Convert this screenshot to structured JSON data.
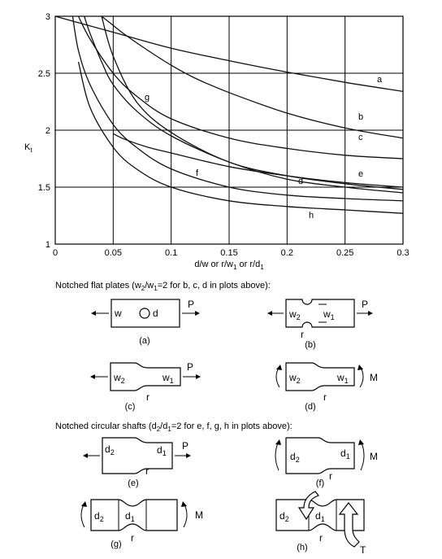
{
  "chart_data": {
    "type": "line",
    "ylabel": "K",
    "ylabel_sub": "t",
    "xlabel_parts": [
      "d/w  or  r/w",
      "1",
      "  or  r/d",
      "1"
    ],
    "xlim": [
      0,
      0.3
    ],
    "ylim": [
      1,
      3
    ],
    "x_ticks": [
      0,
      0.05,
      0.1,
      0.15,
      0.2,
      0.25,
      0.3
    ],
    "x_tick_labels": [
      "0",
      "0.05",
      "0.1",
      "0.15",
      "0.2",
      "0.25",
      "0.3"
    ],
    "y_ticks": [
      1,
      1.5,
      2,
      2.5,
      3
    ],
    "y_tick_labels": [
      "1",
      "1.5",
      "2",
      "2.5",
      "3"
    ],
    "grid": true,
    "series": [
      {
        "name": "a",
        "x": [
          0.0,
          0.05,
          0.1,
          0.15,
          0.2,
          0.25,
          0.3
        ],
        "y": [
          3.0,
          2.86,
          2.72,
          2.61,
          2.51,
          2.42,
          2.34
        ]
      },
      {
        "name": "b",
        "x": [
          0.04,
          0.05,
          0.06,
          0.08,
          0.1,
          0.12,
          0.15,
          0.2,
          0.25,
          0.3
        ],
        "y": [
          3.0,
          2.92,
          2.84,
          2.7,
          2.57,
          2.46,
          2.33,
          2.15,
          2.02,
          1.93
        ]
      },
      {
        "name": "c",
        "x": [
          0.02,
          0.03,
          0.05,
          0.07,
          0.1,
          0.15,
          0.2,
          0.25,
          0.3
        ],
        "y": [
          3.0,
          2.8,
          2.5,
          2.3,
          2.1,
          1.93,
          1.84,
          1.78,
          1.75
        ]
      },
      {
        "name": "d",
        "x": [
          0.025,
          0.03,
          0.04,
          0.05,
          0.07,
          0.1,
          0.15,
          0.2,
          0.25,
          0.3
        ],
        "y": [
          3.0,
          2.85,
          2.6,
          2.4,
          2.17,
          1.95,
          1.72,
          1.57,
          1.5,
          1.45
        ]
      },
      {
        "name": "e",
        "x": [
          0.05,
          0.06,
          0.08,
          0.1,
          0.15,
          0.2,
          0.25,
          0.3
        ],
        "y": [
          1.97,
          1.92,
          1.85,
          1.8,
          1.68,
          1.6,
          1.54,
          1.5
        ]
      },
      {
        "name": "f",
        "x": [
          0.015,
          0.02,
          0.03,
          0.05,
          0.07,
          0.1,
          0.15,
          0.2,
          0.25,
          0.3
        ],
        "y": [
          3.0,
          2.7,
          2.4,
          2.05,
          1.85,
          1.66,
          1.5,
          1.43,
          1.4,
          1.38
        ]
      },
      {
        "name": "g",
        "x": [
          0.04,
          0.05,
          0.07,
          0.1,
          0.15,
          0.2,
          0.25,
          0.3
        ],
        "y": [
          3.0,
          2.65,
          2.25,
          1.98,
          1.72,
          1.6,
          1.53,
          1.48
        ]
      },
      {
        "name": "h",
        "x": [
          0.02,
          0.03,
          0.05,
          0.07,
          0.1,
          0.15,
          0.2,
          0.25,
          0.3
        ],
        "y": [
          2.6,
          2.2,
          1.85,
          1.66,
          1.5,
          1.38,
          1.33,
          1.3,
          1.27
        ]
      }
    ]
  },
  "plates": {
    "heading_parts": [
      "Notched flat plates (w",
      "2",
      "/w",
      "1",
      "=2 for b, c, d in plots above):"
    ],
    "a": {
      "caption": "(a)",
      "w": "w",
      "d": "d",
      "load": "P"
    },
    "b": {
      "caption": "(b)",
      "w2": "w",
      "w2_sub": "2",
      "w1": "w",
      "w1_sub": "1",
      "r": "r",
      "load": "P"
    },
    "c": {
      "caption": "(c)",
      "w2": "w",
      "w2_sub": "2",
      "w1": "w",
      "w1_sub": "1",
      "r": "r",
      "load": "P"
    },
    "d": {
      "caption": "(d)",
      "w2": "w",
      "w2_sub": "2",
      "w1": "w",
      "w1_sub": "1",
      "r": "r",
      "load": "M"
    }
  },
  "shafts": {
    "heading_parts": [
      "Notched circular shafts (d",
      "2",
      "/d",
      "1",
      "=2 for e, f, g, h in plots above):"
    ],
    "e": {
      "caption": "(e)",
      "d2": "d",
      "d2_sub": "2",
      "d1": "d",
      "d1_sub": "1",
      "r": "r",
      "load": "P"
    },
    "f": {
      "caption": "(f)",
      "d2": "d",
      "d2_sub": "2",
      "d1": "d",
      "d1_sub": "1",
      "r": "r",
      "load": "M"
    },
    "g": {
      "caption": "(g)",
      "d2": "d",
      "d2_sub": "2",
      "d1": "d",
      "d1_sub": "1",
      "r": "r",
      "load": "M"
    },
    "h": {
      "caption": "(h)",
      "d2": "d",
      "d2_sub": "2",
      "d1": "d",
      "d1_sub": "1",
      "r": "r",
      "load": "T"
    }
  }
}
